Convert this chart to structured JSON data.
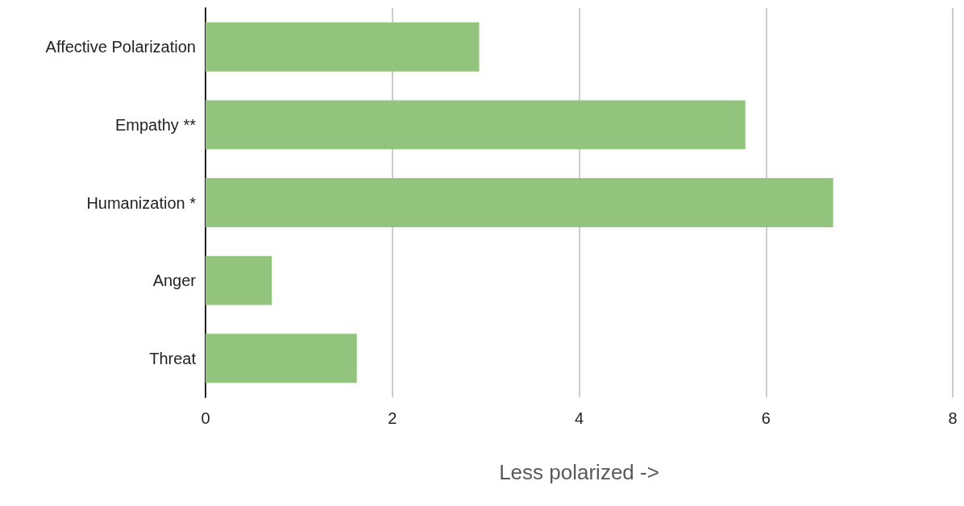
{
  "chart_data": {
    "type": "bar",
    "orientation": "horizontal",
    "xlabel": "Less polarized ->",
    "categories": [
      "Affective Polarization",
      "Empathy **",
      "Humanization *",
      "Anger",
      "Threat"
    ],
    "values": [
      2.93,
      5.78,
      6.72,
      0.71,
      1.62
    ],
    "color": "#93c47d",
    "xlim": [
      0,
      8
    ],
    "xticks": [
      0,
      2,
      4,
      6,
      8
    ],
    "grid": "x"
  }
}
